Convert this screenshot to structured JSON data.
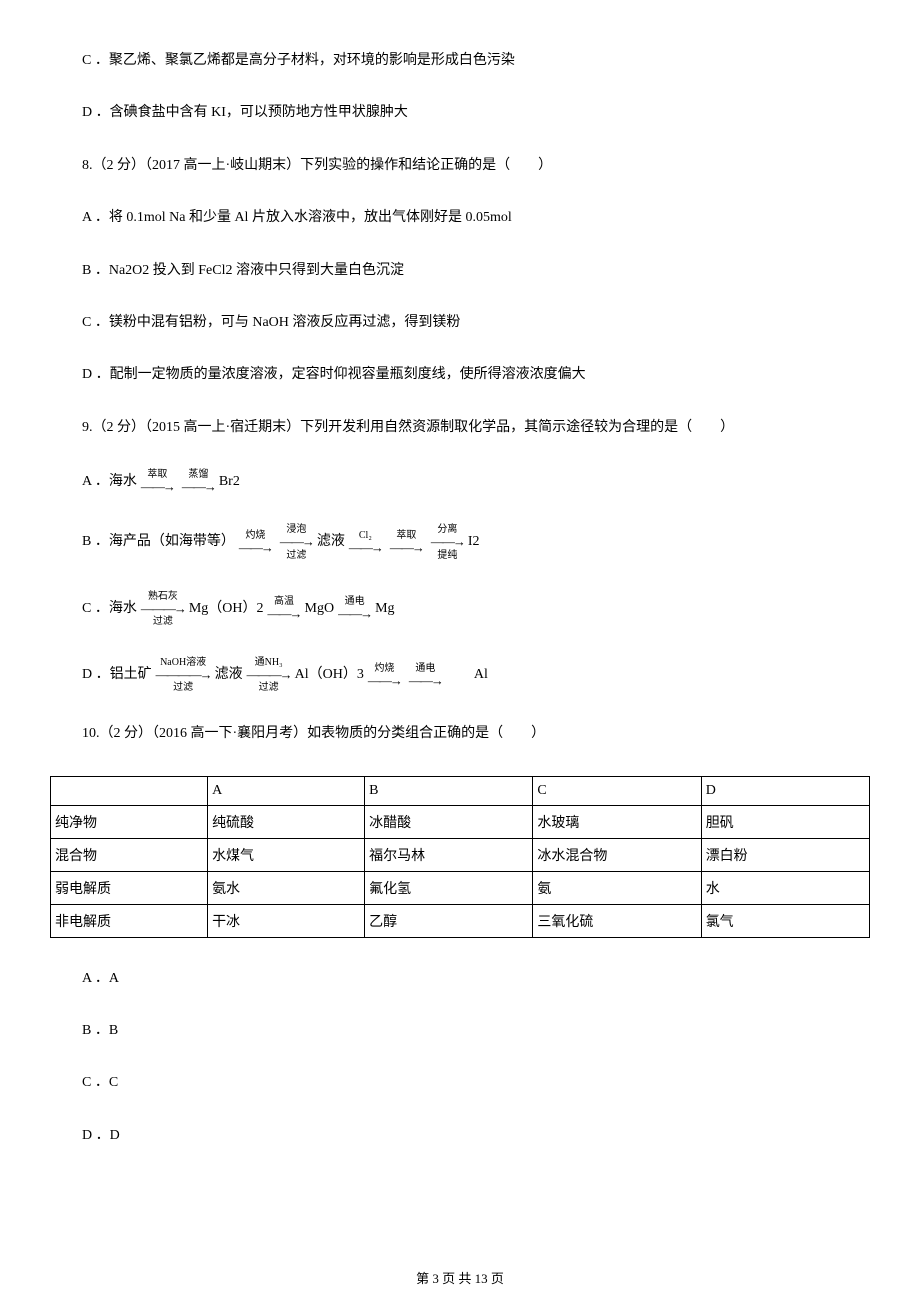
{
  "choices_q7": {
    "c": "C ．聚乙烯、聚氯乙烯都是高分子材料，对环境的影响是形成白色污染",
    "d": "D ．含碘食盐中含有 KI，可以预防地方性甲状腺肿大"
  },
  "q8": {
    "stem": "8.（2 分）（2017 高一上·岐山期末）下列实验的操作和结论正确的是（　　）",
    "a": "A ．将 0.1mol Na 和少量 Al 片放入水溶液中，放出气体刚好是 0.05mol",
    "b": "B ．Na2O2 投入到 FeCl2 溶液中只得到大量白色沉淀",
    "c": "C ．镁粉中混有铝粉，可与 NaOH 溶液反应再过滤，得到镁粉",
    "d": "D ．配制一定物质的量浓度溶液，定容时仰视容量瓶刻度线，使所得溶液浓度偏大"
  },
  "q9": {
    "stem": "9.（2 分）（2015 高一上·宿迁期末）下列开发利用自然资源制取化学品，其简示途径较为合理的是（　　）",
    "a_prefix": "A ．海水 ",
    "a_arrow1": "萃取",
    "a_arrow2": "蒸馏",
    "a_suffix": " Br2",
    "b_prefix": "B ．海产品（如海带等） ",
    "b_step1_top": "灼烧",
    "b_step1_bot": "",
    "b_step2_top": "浸泡",
    "b_step2_bot": "过滤",
    "b_mid1": " 滤液 ",
    "b_step3_top": "Cl₂",
    "b_mid2": " ",
    "b_step4_top": "萃取",
    "b_step5_top": "分离",
    "b_step5_bot": "提纯",
    "b_suffix": " I2",
    "c_prefix": "C ．海水 ",
    "c_step1_top": "熟石灰",
    "c_step1_bot": "过滤",
    "c_mid1": " Mg（OH）2 ",
    "c_step2_top": "高温",
    "c_mid2": " MgO ",
    "c_step3_top": "通电",
    "c_suffix": " Mg",
    "d_prefix": "D ．铝土矿 ",
    "d_step1_top": "NaOH溶液",
    "d_step1_bot": "过滤",
    "d_mid1": " 滤液 ",
    "d_step2_top": "通NH₃",
    "d_step2_bot": "过滤",
    "d_mid2": " Al（OH）3 ",
    "d_step3_top": "灼烧",
    "d_step4_top": "通电",
    "d_suffix": "　　Al"
  },
  "q10": {
    "stem": "10.（2 分）（2016 高一下·襄阳月考）如表物质的分类组合正确的是（　　）",
    "table": {
      "headers": [
        "",
        "A",
        "B",
        "C",
        "D"
      ],
      "rows": [
        [
          "纯净物",
          "纯硫酸",
          "冰醋酸",
          "水玻璃",
          "胆矾"
        ],
        [
          "混合物",
          "水煤气",
          "福尔马林",
          "冰水混合物",
          "漂白粉"
        ],
        [
          "弱电解质",
          "氨水",
          "氟化氢",
          "氨",
          "水"
        ],
        [
          "非电解质",
          "干冰",
          "乙醇",
          "三氧化硫",
          "氯气"
        ]
      ],
      "col_widths": [
        "140px",
        "140px",
        "150px",
        "150px",
        "150px"
      ]
    },
    "a": "A ．A",
    "b": "B ．B",
    "c": "C ．C",
    "d": "D ．D"
  },
  "footer": "第 3 页 共 13 页"
}
